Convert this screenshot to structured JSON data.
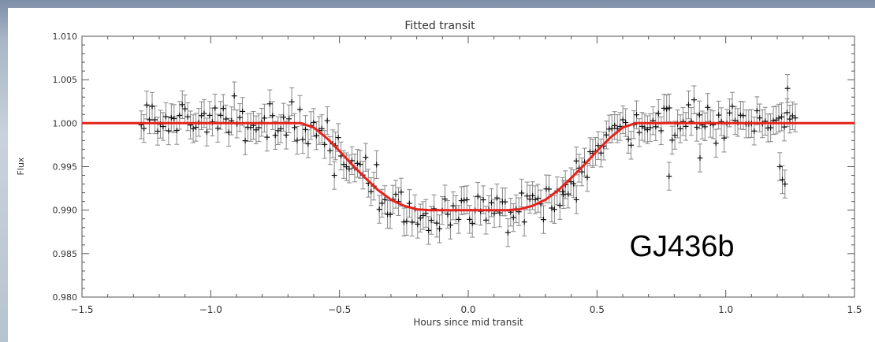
{
  "chart_data": {
    "type": "scatter",
    "title": "Fitted transit",
    "xlabel": "Hours since mid transit",
    "ylabel": "Flux",
    "xlim": [
      -1.5,
      1.5
    ],
    "ylim": [
      0.98,
      1.01
    ],
    "x_ticks": [
      -1.5,
      -1.0,
      -0.5,
      0.0,
      0.5,
      1.0,
      1.5
    ],
    "x_tick_labels": [
      "−1.5",
      "−1.0",
      "−0.5",
      "0.0",
      "0.5",
      "1.0",
      "1.5"
    ],
    "y_ticks": [
      0.98,
      0.985,
      0.99,
      0.995,
      1.0,
      1.005,
      1.01
    ],
    "y_tick_labels": [
      "0.980",
      "0.985",
      "0.990",
      "0.995",
      "1.000",
      "1.005",
      "1.010"
    ],
    "annotation": "GJ436b",
    "colors": {
      "fit": "#e8221a",
      "points": "#111111",
      "errorbars": "#888888"
    },
    "fit_model": {
      "baseline": 1.0,
      "minimum": 0.99,
      "x": [
        -1.5,
        -0.65,
        -0.6,
        -0.55,
        -0.5,
        -0.45,
        -0.4,
        -0.35,
        -0.3,
        -0.25,
        -0.2,
        -0.15,
        -0.1,
        0.0,
        0.1,
        0.15,
        0.2,
        0.25,
        0.3,
        0.35,
        0.4,
        0.45,
        0.5,
        0.55,
        0.6,
        0.65,
        1.5
      ],
      "y": [
        1.0,
        1.0,
        0.9995,
        0.9983,
        0.9968,
        0.9952,
        0.9937,
        0.9923,
        0.9912,
        0.9905,
        0.9901,
        0.99,
        0.99,
        0.99,
        0.99,
        0.99,
        0.9901,
        0.9905,
        0.9912,
        0.9923,
        0.9937,
        0.9952,
        0.9968,
        0.9983,
        0.9995,
        1.0,
        1.0
      ]
    },
    "series": [
      {
        "x_range": [
          -1.27,
          1.27
        ],
        "n_points": 240,
        "typical_error": 0.0016,
        "out_of_transit_level": 1.0003,
        "in_transit_level": 0.9895,
        "notable_points": [
          {
            "x": -0.52,
            "y": 0.994
          },
          {
            "x": 0.37,
            "y": 0.9918
          },
          {
            "x": 0.42,
            "y": 0.9912
          },
          {
            "x": 0.78,
            "y": 0.9939
          },
          {
            "x": 0.9,
            "y": 0.996
          },
          {
            "x": 1.21,
            "y": 0.995
          },
          {
            "x": 1.22,
            "y": 0.9935
          },
          {
            "x": 1.23,
            "y": 0.993
          },
          {
            "x": 1.24,
            "y": 1.004
          }
        ]
      }
    ]
  }
}
